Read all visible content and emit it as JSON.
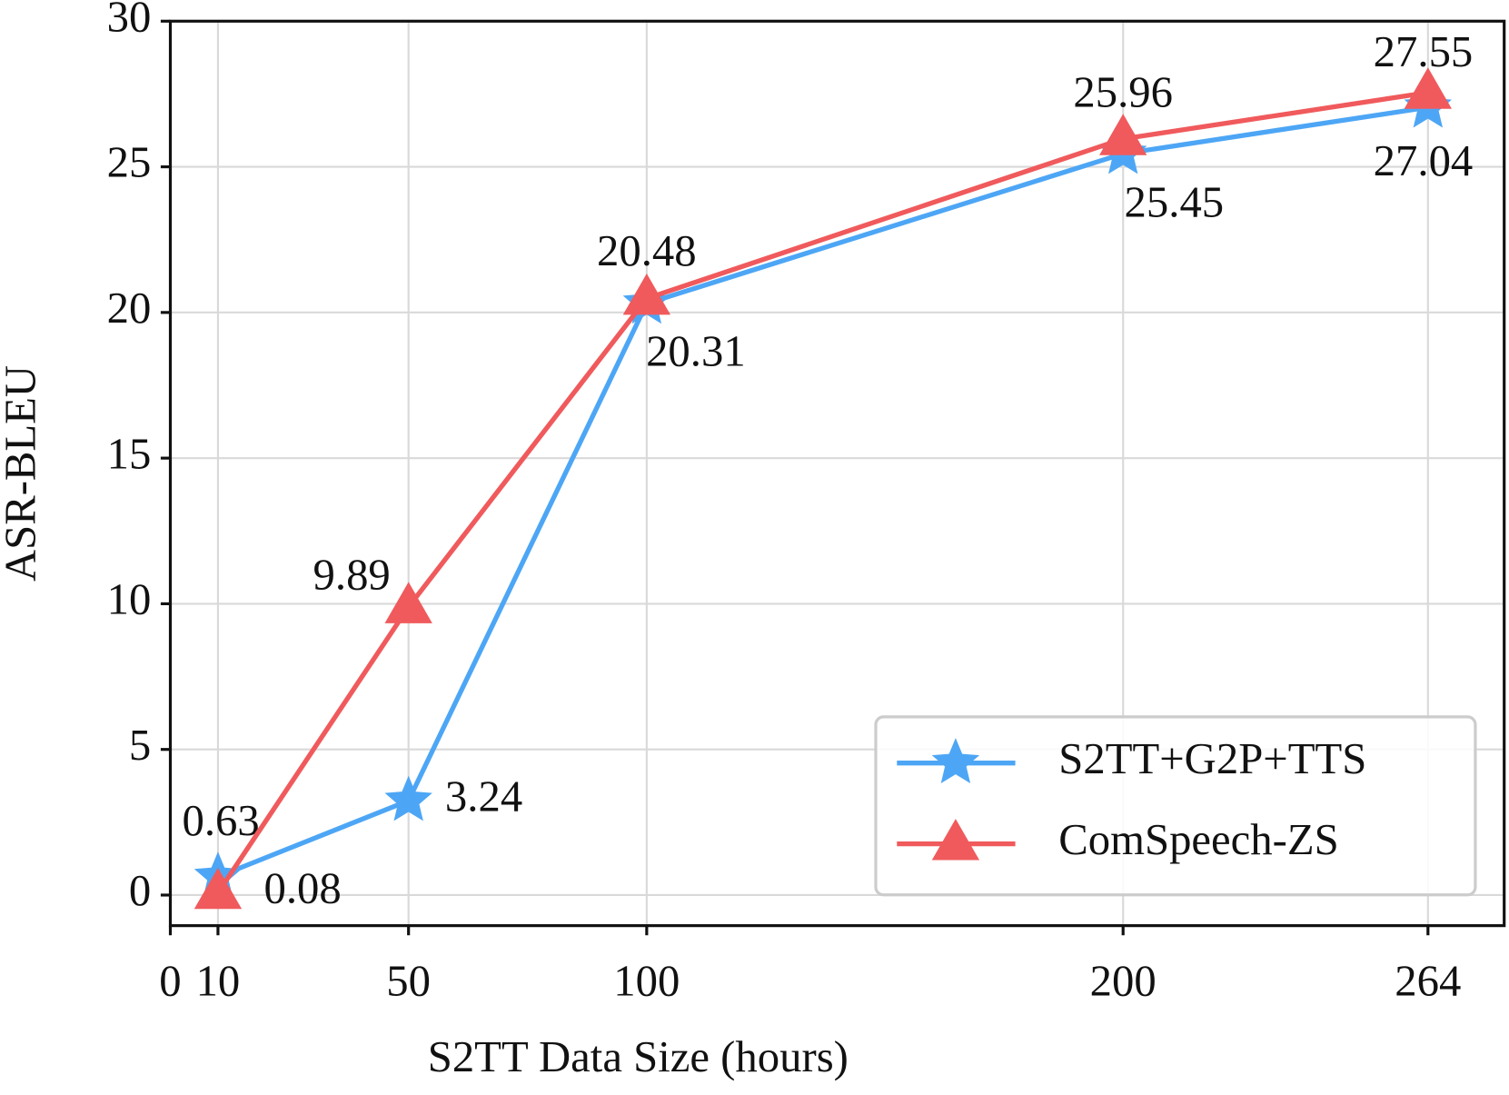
{
  "chart_data": {
    "type": "line",
    "xlabel": "S2TT Data Size (hours)",
    "ylabel": "ASR-BLEU",
    "x": [
      10,
      50,
      100,
      200,
      264
    ],
    "series": [
      {
        "name": "S2TT+G2P+TTS",
        "color": "#4da6f5",
        "marker": "star",
        "values": [
          0.63,
          3.24,
          20.31,
          25.45,
          27.04
        ]
      },
      {
        "name": "ComSpeech-ZS",
        "color": "#f05a5c",
        "marker": "triangle",
        "values": [
          0.08,
          9.89,
          20.48,
          25.96,
          27.55
        ]
      }
    ],
    "xlim": [
      0,
      280
    ],
    "xticks": [
      0,
      10,
      50,
      100,
      200,
      264
    ],
    "ylim": [
      -1.05,
      30
    ],
    "yticks": [
      0,
      5,
      10,
      15,
      20,
      25,
      30
    ],
    "grid": true,
    "legend": "lower right"
  }
}
